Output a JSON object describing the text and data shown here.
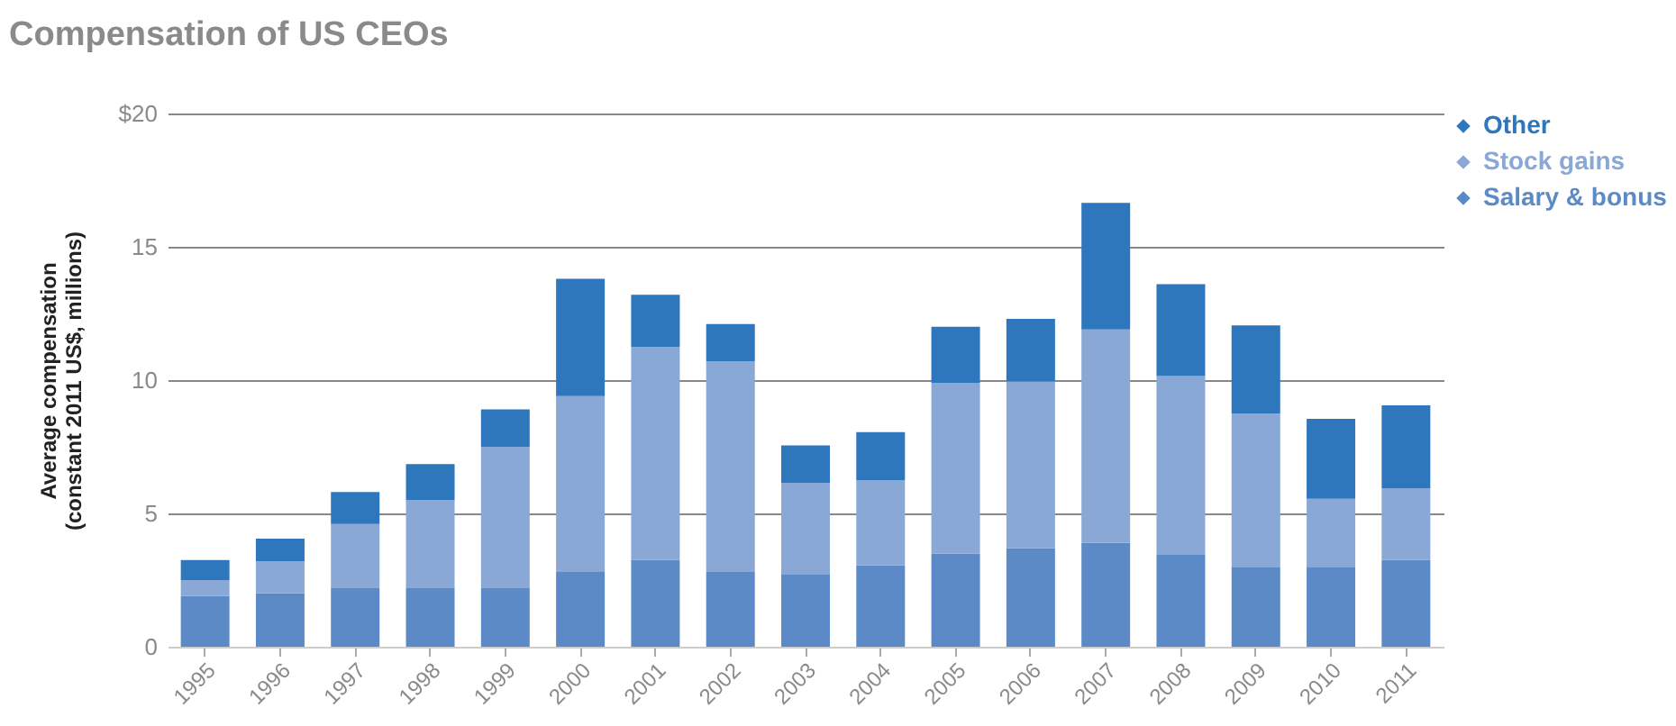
{
  "chart_data": {
    "type": "bar",
    "title": "Compensation of US CEOs",
    "ylabel": "Average compensation\n(constant 2011 US$, millions)",
    "categories": [
      "1995",
      "1996",
      "1997",
      "1998",
      "1999",
      "2000",
      "2001",
      "2002",
      "2003",
      "2004",
      "2005",
      "2006",
      "2007",
      "2008",
      "2009",
      "2010",
      "2011"
    ],
    "series": [
      {
        "name": "Salary & bonus",
        "color": "#5b8ac6",
        "values": [
          1.9,
          2.0,
          2.2,
          2.2,
          2.2,
          2.8,
          3.25,
          2.8,
          2.7,
          3.05,
          3.5,
          3.7,
          3.9,
          3.45,
          3.0,
          3.0,
          3.25
        ]
      },
      {
        "name": "Stock gains",
        "color": "#89a8d6",
        "values": [
          0.6,
          1.2,
          2.4,
          3.3,
          5.3,
          6.6,
          8.0,
          7.9,
          3.45,
          3.2,
          6.4,
          6.25,
          8.0,
          6.7,
          5.75,
          2.55,
          2.7
        ]
      },
      {
        "name": "Other",
        "color": "#2e77bd",
        "values": [
          0.75,
          0.85,
          1.2,
          1.35,
          1.4,
          4.4,
          1.95,
          1.4,
          1.4,
          1.8,
          2.1,
          2.35,
          4.75,
          3.45,
          3.3,
          3.0,
          3.1
        ]
      }
    ],
    "stacked": true,
    "ylim": [
      0,
      20
    ],
    "yticks": [
      0,
      5,
      10,
      15,
      {
        "value": 20,
        "label": "$20"
      }
    ],
    "grid": "y",
    "legend": "right"
  }
}
